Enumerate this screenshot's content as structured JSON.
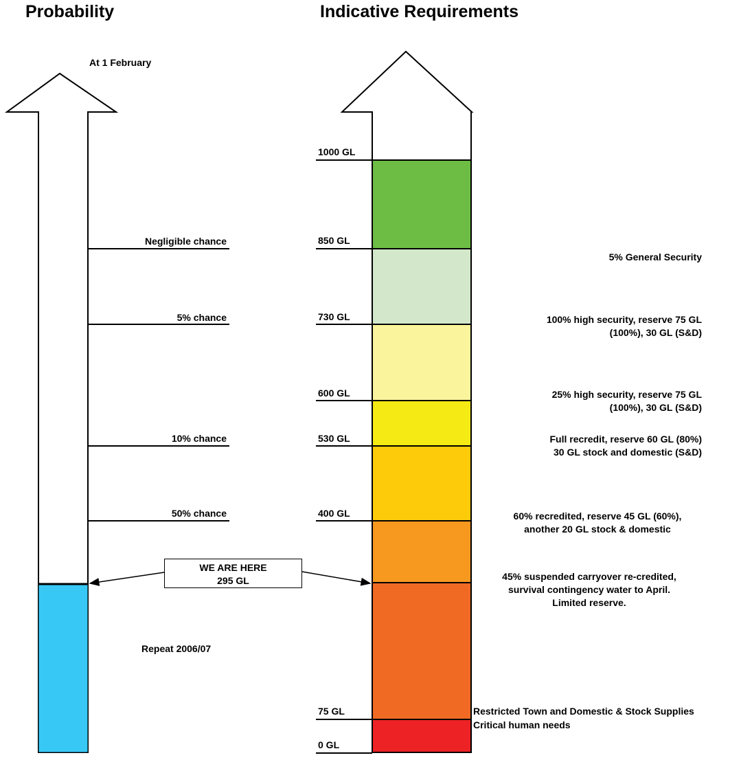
{
  "headings": {
    "left": "Probability",
    "right": "Indicative Requirements"
  },
  "date_label": "At 1 February",
  "probability": {
    "current_label": "Repeat 2006/07",
    "fill_color": "#38c8f5",
    "levels": [
      {
        "label": "Negligible chance",
        "gl": 850
      },
      {
        "label": "5% chance",
        "gl": 730
      },
      {
        "label": "10% chance",
        "gl": 530
      },
      {
        "label": "50% chance",
        "gl": 400
      }
    ]
  },
  "marker": {
    "line1": "WE ARE HERE",
    "line2": "295 GL",
    "value_gl": 295
  },
  "scale_labels": [
    "1000 GL",
    "850 GL",
    "730 GL",
    "600 GL",
    "530 GL",
    "400 GL",
    "75 GL",
    "0 GL"
  ],
  "bands": [
    {
      "from_gl": 850,
      "to_gl": 1000,
      "color": "#6dbd45"
    },
    {
      "from_gl": 730,
      "to_gl": 850,
      "color": "#d3e8cb"
    },
    {
      "from_gl": 600,
      "to_gl": 730,
      "color": "#faf49c"
    },
    {
      "from_gl": 530,
      "to_gl": 600,
      "color": "#f5ea14"
    },
    {
      "from_gl": 400,
      "to_gl": 530,
      "color": "#fdcb0a"
    },
    {
      "from_gl": 295,
      "to_gl": 400,
      "color": "#f7981f"
    },
    {
      "from_gl": 75,
      "to_gl": 295,
      "color": "#f06a24"
    },
    {
      "from_gl": 0,
      "to_gl": 75,
      "color": "#ed2224"
    }
  ],
  "requirements": {
    "general_security": "5%  General Security",
    "hs100_line1": "100% high security, reserve 75 GL",
    "hs100_line2": "(100%), 30 GL (S&D)",
    "hs25_line1": "25% high security, reserve 75 GL",
    "hs25_line2": "(100%), 30 GL (S&D)",
    "full_line1": "Full recredit, reserve 60 GL (80%)",
    "full_line2": "30 GL stock and domestic (S&D)",
    "r60_line1": "60% recredited, reserve 45 GL (60%),",
    "r60_line2": "another 20 GL stock & domestic",
    "r45_line1": "45% suspended carryover re-credited,",
    "r45_line2": "survival contingency water to April.",
    "r45_line3": "Limited reserve.",
    "restricted": "Restricted Town and Domestic & Stock Supplies",
    "critical": "Critical human needs"
  }
}
